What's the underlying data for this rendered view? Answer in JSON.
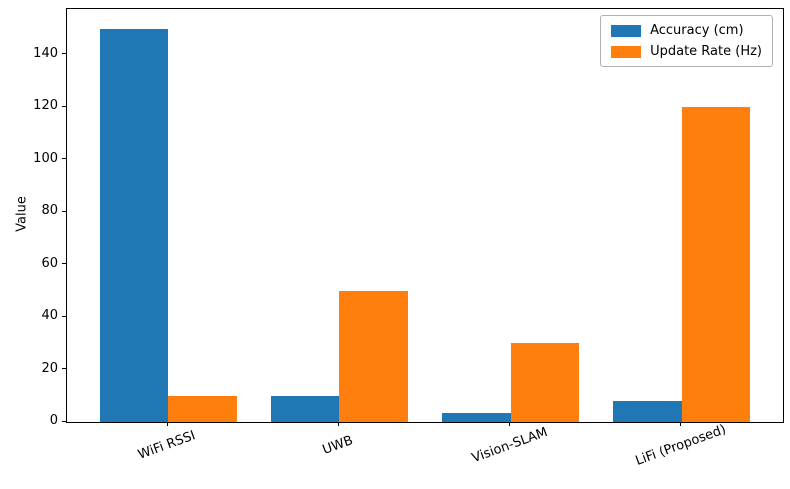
{
  "chart_data": {
    "type": "bar",
    "title": "",
    "xlabel": "",
    "ylabel": "Value",
    "categories": [
      "WiFi RSSI",
      "UWB",
      "Vision-SLAM",
      "LiFi (Proposed)"
    ],
    "series": [
      {
        "name": "Accuracy (cm)",
        "color": "#1f77b4",
        "values": [
          150,
          10,
          3.5,
          8
        ]
      },
      {
        "name": "Update Rate (Hz)",
        "color": "#ff7f0e",
        "values": [
          10,
          50,
          30,
          120
        ]
      }
    ],
    "ylim": [
      0,
      157.5
    ],
    "yticks": [
      0,
      20,
      40,
      60,
      80,
      100,
      120,
      140
    ],
    "bar_width": 0.4,
    "grid": false,
    "legend_position": "upper right",
    "background_color": "#ffffff",
    "axis_color": "#000000"
  }
}
